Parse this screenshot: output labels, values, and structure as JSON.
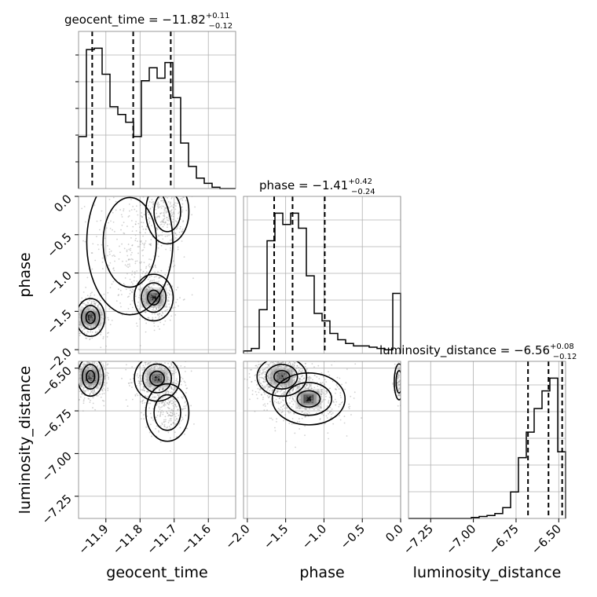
{
  "chart_data": {
    "type": "corner",
    "parameters": [
      "geocent_time",
      "phase",
      "luminosity_distance"
    ],
    "titles": [
      {
        "name": "geocent_time",
        "median": "−11.82",
        "plus": "+0.11",
        "minus": "−0.12"
      },
      {
        "name": "phase",
        "median": "−1.41",
        "plus": "+0.42",
        "minus": "−0.24"
      },
      {
        "name": "luminosity_distance",
        "median": "−6.56",
        "plus": "+0.08",
        "minus": "−0.12"
      }
    ],
    "ranges": {
      "geocent_time": [
        -11.98,
        -11.52
      ],
      "phase": [
        -2.05,
        0.0
      ],
      "luminosity_distance": [
        -7.38,
        -6.46
      ]
    },
    "ticks": {
      "geocent_time": {
        "values": [
          -11.9,
          -11.8,
          -11.7,
          -11.6
        ],
        "labels": [
          "−11.9",
          "−11.8",
          "−11.7",
          "−11.6"
        ]
      },
      "phase": {
        "values": [
          -2.0,
          -1.5,
          -1.0,
          -0.5,
          0.0
        ],
        "labels": [
          "−2.0",
          "−1.5",
          "−1.0",
          "−0.5",
          "0.0"
        ]
      },
      "luminosity_distance": {
        "values": [
          -7.25,
          -7.0,
          -6.75,
          -6.5
        ],
        "labels": [
          "−7.25",
          "−7.00",
          "−6.75",
          "−6.50"
        ]
      }
    },
    "quantiles": {
      "geocent_time": [
        -11.94,
        -11.82,
        -11.71
      ],
      "phase": [
        -1.65,
        -1.41,
        -0.99
      ],
      "luminosity_distance": [
        -6.68,
        -6.56,
        -6.48
      ]
    },
    "histograms": {
      "geocent_time": {
        "bin_edges": [
          -11.98,
          -11.957,
          -11.934,
          -11.911,
          -11.888,
          -11.865,
          -11.842,
          -11.819,
          -11.796,
          -11.773,
          -11.75,
          -11.727,
          -11.704,
          -11.681,
          -11.658,
          -11.635,
          -11.612,
          -11.589,
          -11.566,
          -11.543,
          -11.52
        ],
        "counts": [
          40,
          107,
          108,
          88,
          63,
          57,
          51,
          40,
          83,
          93,
          85,
          97,
          70,
          35,
          17,
          8,
          4,
          1,
          0,
          0
        ]
      },
      "phase": {
        "bin_edges": [
          -2.05,
          -1.9475,
          -1.845,
          -1.7425,
          -1.64,
          -1.5375,
          -1.435,
          -1.3325,
          -1.23,
          -1.1275,
          -1.025,
          -0.9225,
          -0.82,
          -0.7175,
          -0.615,
          -0.5125,
          -0.41,
          -0.3075,
          -0.205,
          -0.1025,
          0.0
        ],
        "counts": [
          2,
          4,
          35,
          90,
          112,
          103,
          112,
          100,
          62,
          32,
          26,
          16,
          11,
          8,
          6,
          6,
          5,
          4,
          3,
          48
        ]
      },
      "luminosity_distance": {
        "bin_edges": [
          -7.38,
          -7.334,
          -7.288,
          -7.242,
          -7.196,
          -7.15,
          -7.104,
          -7.058,
          -7.012,
          -6.966,
          -6.92,
          -6.874,
          -6.828,
          -6.782,
          -6.736,
          -6.69,
          -6.644,
          -6.598,
          -6.552,
          -6.506,
          -6.46
        ],
        "counts": [
          0,
          0,
          0,
          0,
          0,
          0,
          0,
          0,
          1,
          2,
          3,
          5,
          11,
          27,
          62,
          88,
          112,
          130,
          143,
          68
        ]
      }
    },
    "grid": true
  }
}
